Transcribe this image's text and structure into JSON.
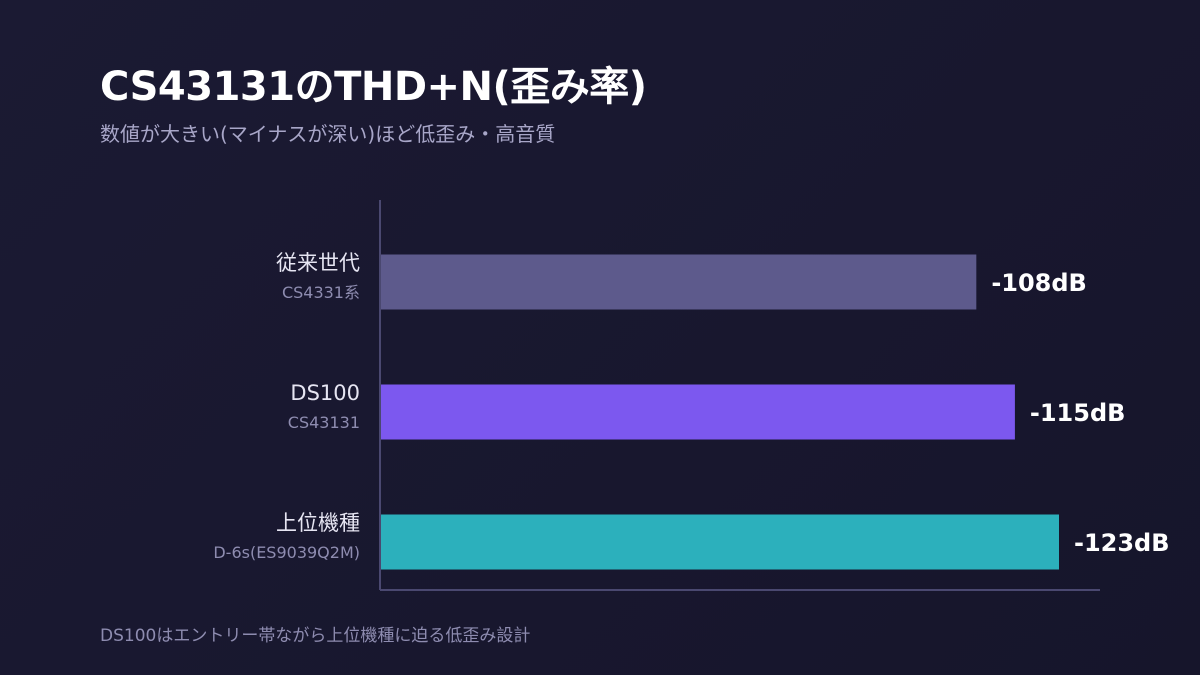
{
  "header": {
    "title": "CS43131のTHD+N(歪み率)",
    "subtitle": "数値が大きい(マイナスが深い)ほど低歪み・高音質"
  },
  "footnote": "DS100はエントリー帯ながら上位機種に迫る低歪み設計",
  "chart_data": {
    "type": "bar",
    "orientation": "horizontal",
    "title": "CS43131のTHD+N(歪み率)",
    "subtitle": "数値が大きい(マイナスが深い)ほど低歪み・高音質",
    "unit": "dB",
    "categories": [
      {
        "name": "従来世代",
        "sub": "CS4331系"
      },
      {
        "name": "DS100",
        "sub": "CS43131"
      },
      {
        "name": "上位機種",
        "sub": "D-6s(ES9039Q2M)"
      }
    ],
    "values": [
      -108,
      -115,
      -123
    ],
    "value_labels": [
      "-108dB",
      "-115dB",
      "-123dB"
    ],
    "colors": [
      "#5d5a8c",
      "#7c58ef",
      "#2cb0bc"
    ],
    "axis_color": "#4a4870",
    "bar_axis_range": [
      0,
      -126
    ],
    "grid": false,
    "legend": "none"
  }
}
